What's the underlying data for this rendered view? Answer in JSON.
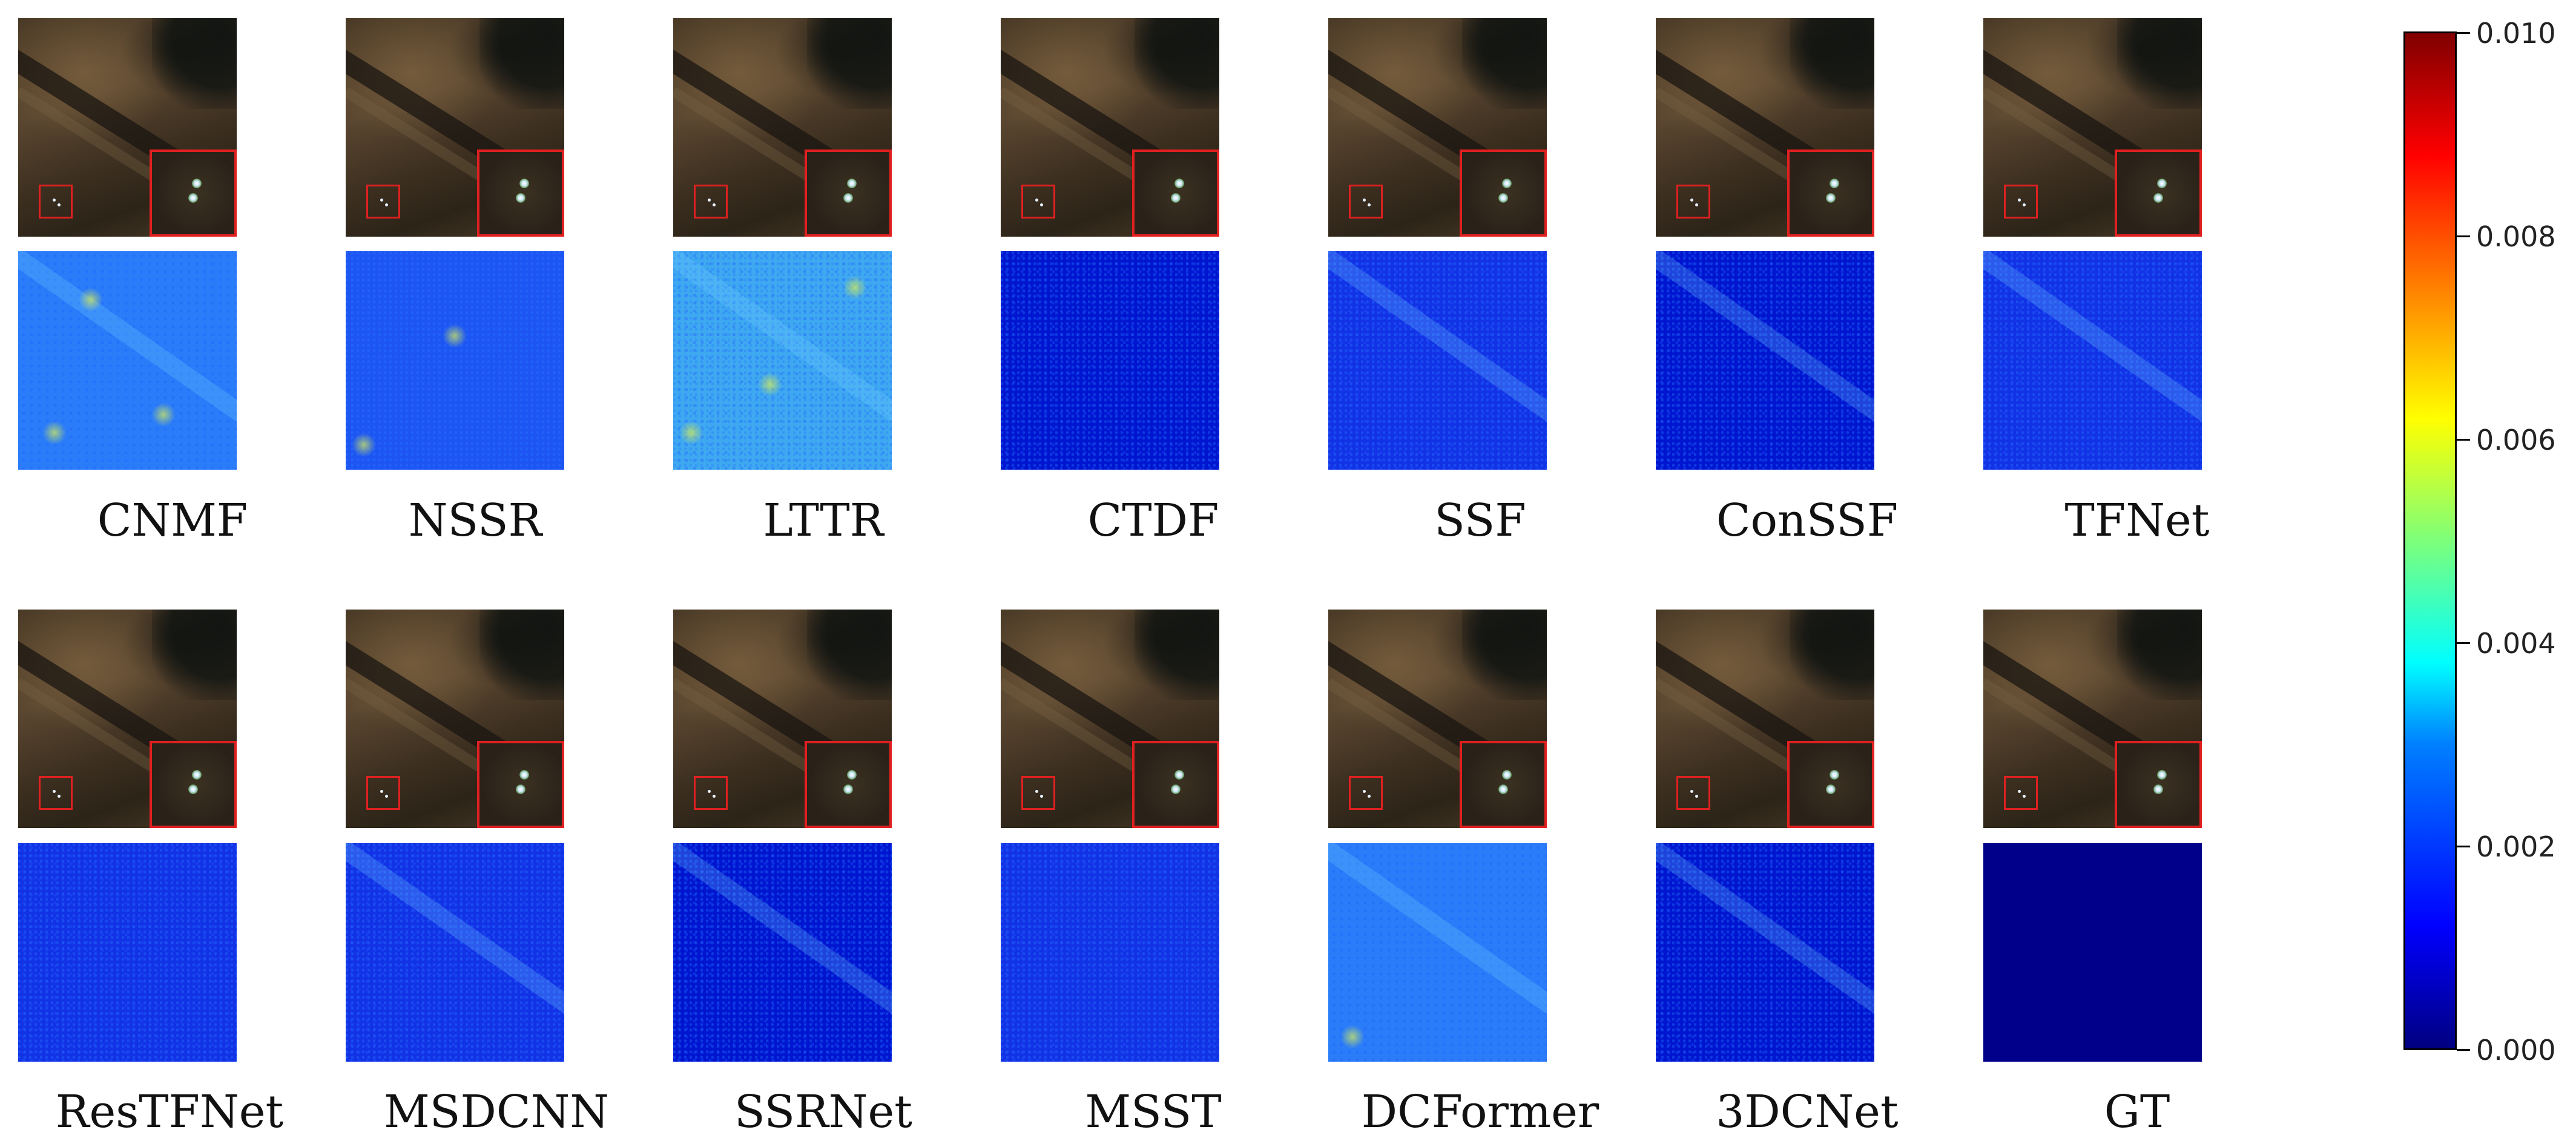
{
  "row1": {
    "labels": [
      "CNMF",
      "NSSR",
      "LTTR",
      "CTDF",
      "SSF",
      "ConSSF",
      "TFNet"
    ]
  },
  "row2": {
    "labels": [
      "ResTFNet",
      "MSDCNN",
      "SSRNet",
      "MSST",
      "DCFormer",
      "3DCNet",
      "GT"
    ]
  },
  "colorbar": {
    "colormap": "jet",
    "min": 0.0,
    "max": 0.01,
    "ticks": [
      "0.000",
      "0.002",
      "0.004",
      "0.006",
      "0.008",
      "0.010"
    ]
  }
}
